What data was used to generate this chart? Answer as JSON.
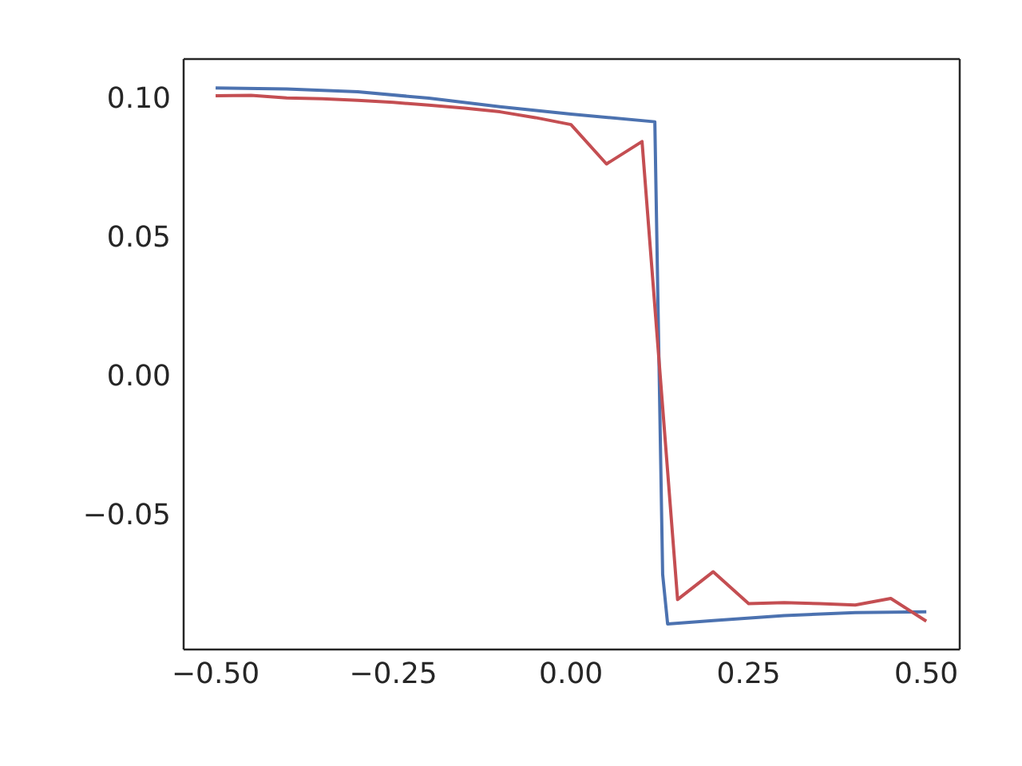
{
  "chart_data": {
    "type": "line",
    "xlim": [
      -0.545,
      0.547
    ],
    "ylim": [
      -0.0989,
      0.1138
    ],
    "xticks": [
      {
        "value": -0.5,
        "label": "−0.50"
      },
      {
        "value": -0.25,
        "label": "−0.25"
      },
      {
        "value": 0,
        "label": "0.00"
      },
      {
        "value": 0.25,
        "label": "0.25"
      },
      {
        "value": 0.5,
        "label": "0.50"
      }
    ],
    "yticks": [
      {
        "value": -0.05,
        "label": "−0.05"
      },
      {
        "value": 0,
        "label": "0.00"
      },
      {
        "value": 0.05,
        "label": "0.05"
      },
      {
        "value": 0.1,
        "label": "0.10"
      }
    ],
    "grid": false,
    "marker": "none",
    "line_style": "solid",
    "series": [
      {
        "color": "#4c72b0",
        "x": [
          -0.5,
          -0.4,
          -0.3,
          -0.2,
          -0.1,
          0,
          0.118,
          0.129,
          0.136,
          0.2,
          0.3,
          0.4,
          0.5
        ],
        "values": [
          0.1034,
          0.103,
          0.102,
          0.0997,
          0.0966,
          0.094,
          0.0912,
          -0.0718,
          -0.0897,
          -0.0885,
          -0.0867,
          -0.0856,
          -0.0853
        ]
      },
      {
        "color": "#c44e52",
        "x": [
          -0.5,
          -0.45,
          -0.4,
          -0.35,
          -0.3,
          -0.25,
          -0.2,
          -0.15,
          -0.1,
          -0.05,
          0,
          0.05,
          0.1,
          0.15,
          0.2,
          0.25,
          0.3,
          0.35,
          0.4,
          0.45,
          0.5
        ],
        "values": [
          0.1006,
          0.1007,
          0.0998,
          0.0995,
          0.0989,
          0.0982,
          0.0972,
          0.0961,
          0.0948,
          0.0927,
          0.0902,
          0.076,
          0.0841,
          -0.0809,
          -0.0709,
          -0.0824,
          -0.082,
          -0.0824,
          -0.0829,
          -0.0805,
          -0.0887
        ]
      }
    ]
  }
}
